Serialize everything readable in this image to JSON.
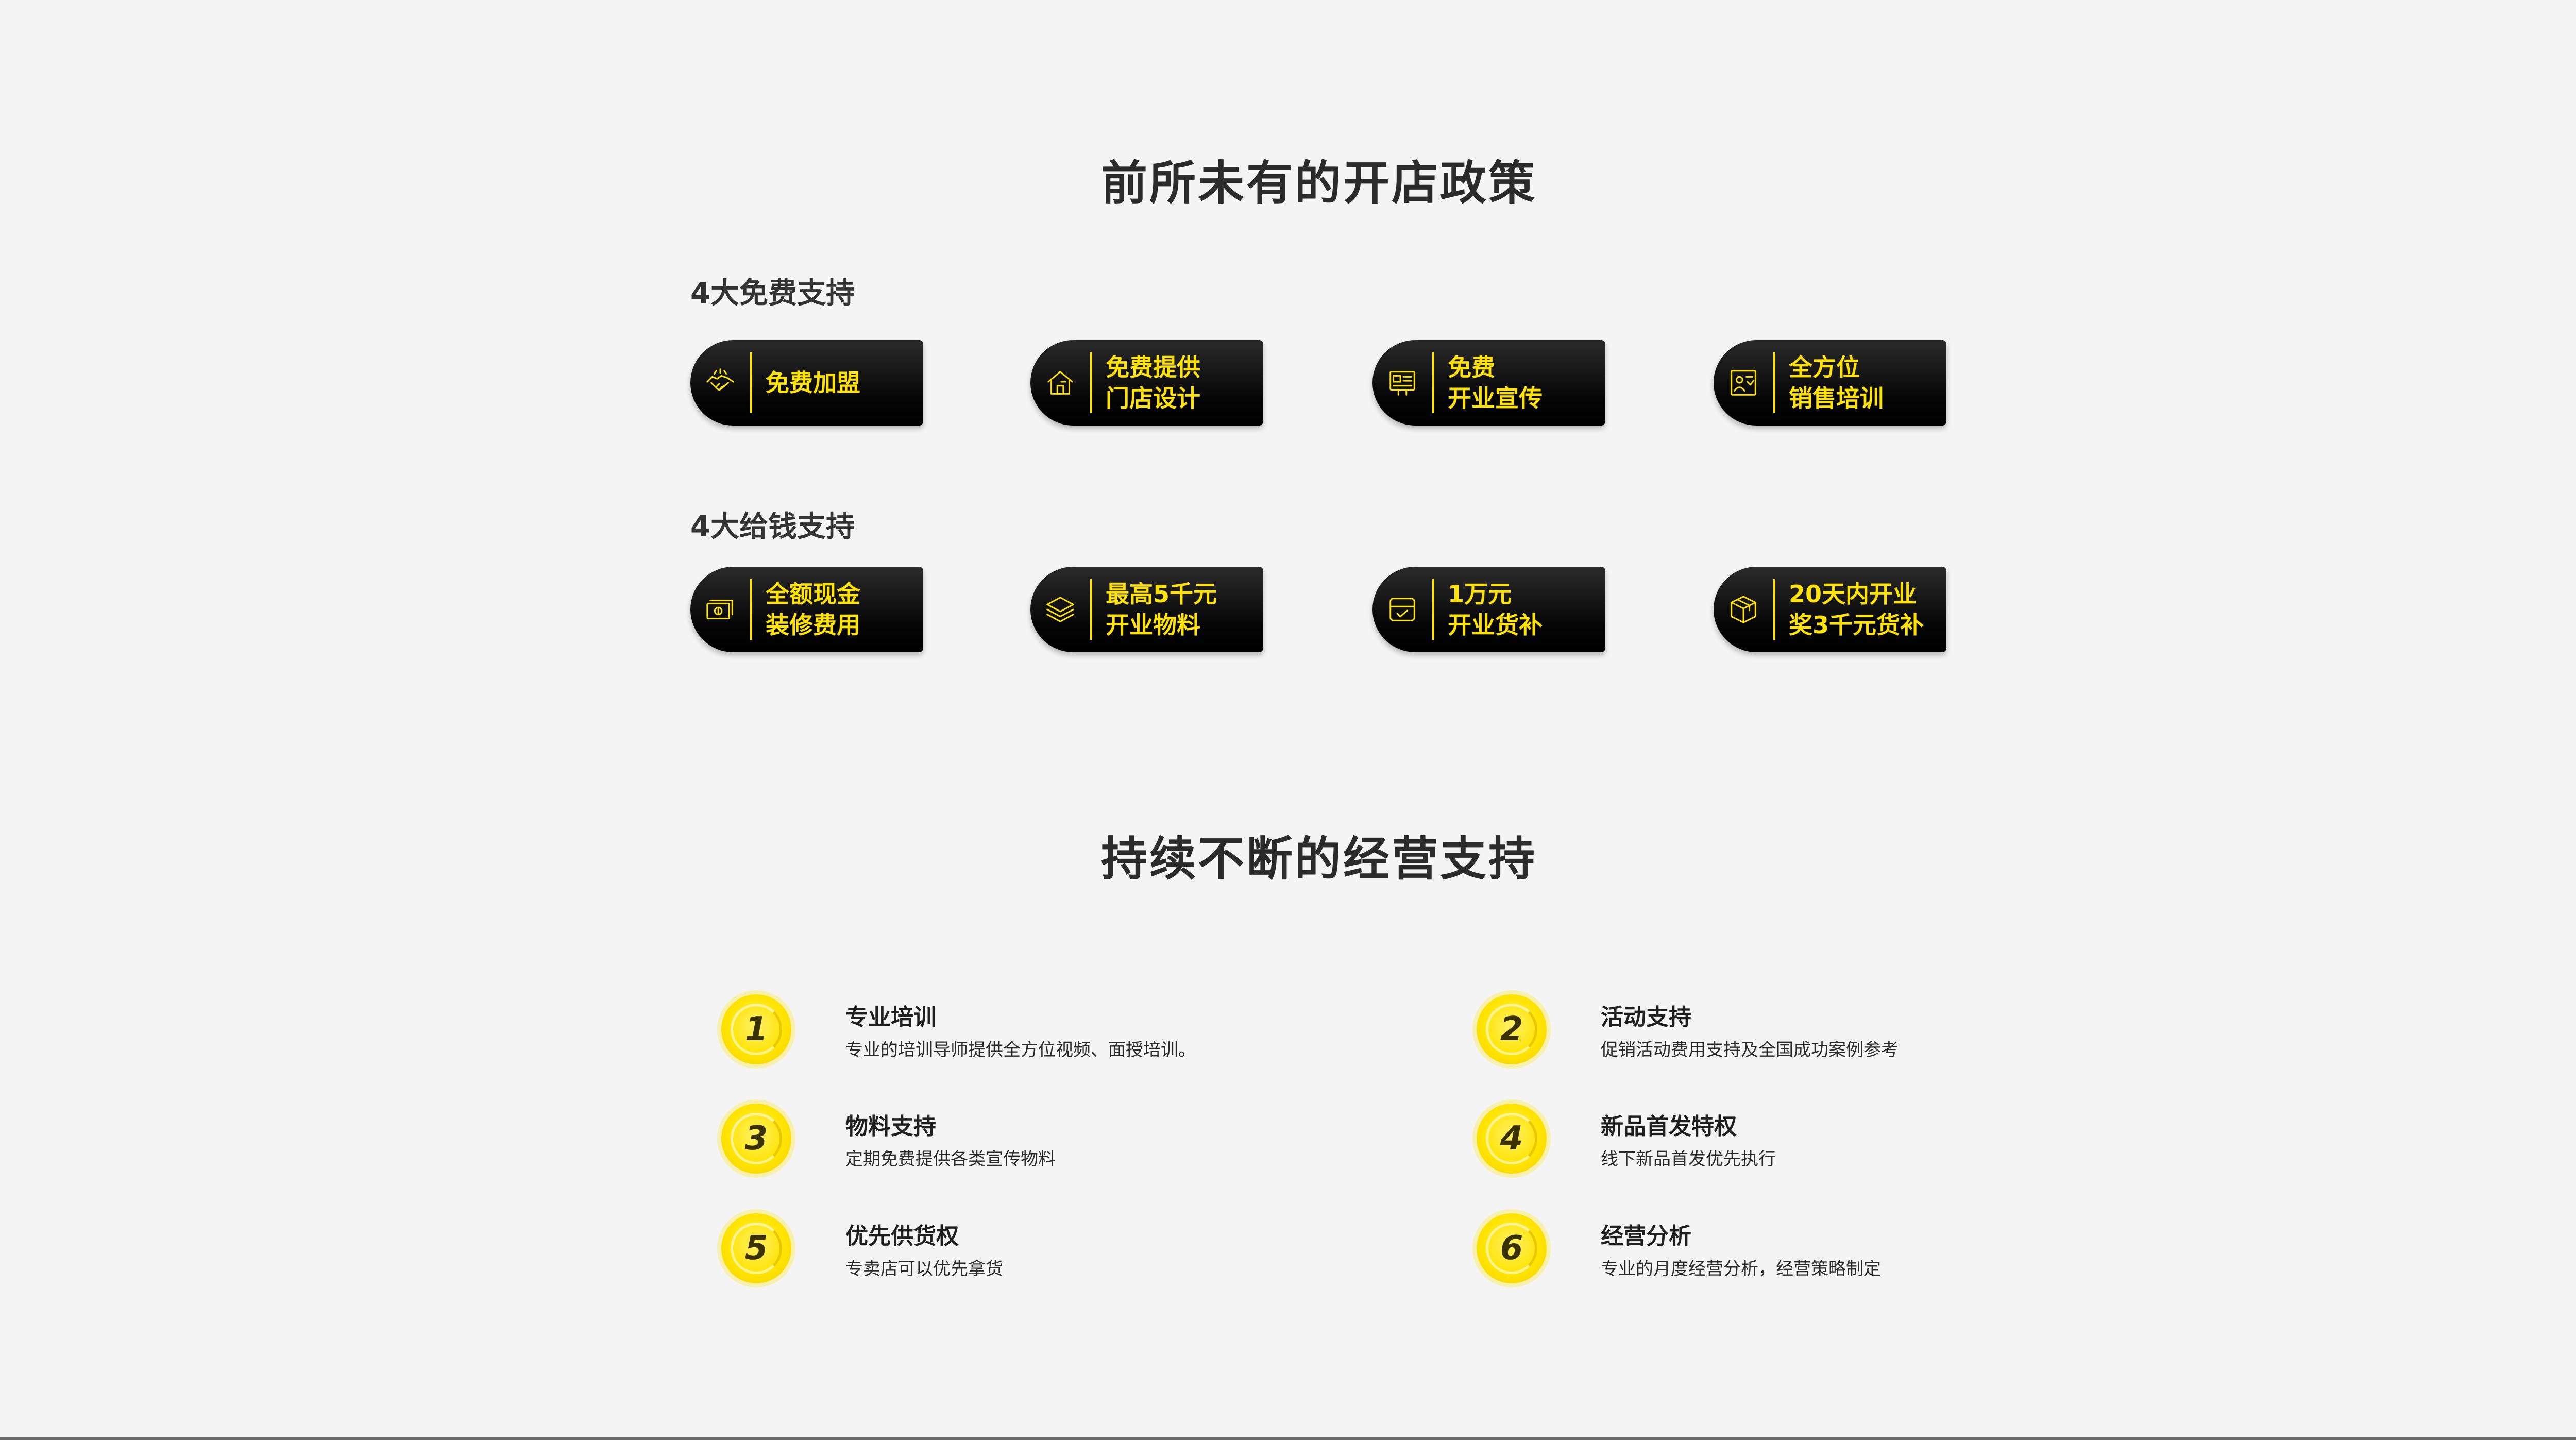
{
  "policy": {
    "title": "前所未有的开店政策",
    "free_support": {
      "label": "4大免费支持",
      "cards": [
        {
          "icon": "handshake-icon",
          "lines": [
            "免费加盟"
          ]
        },
        {
          "icon": "storefront-icon",
          "lines": [
            "免费提供",
            "门店设计"
          ]
        },
        {
          "icon": "billboard-icon",
          "lines": [
            "免费",
            "开业宣传"
          ]
        },
        {
          "icon": "trainer-board-icon",
          "lines": [
            "全方位",
            "销售培训"
          ]
        }
      ]
    },
    "money_support": {
      "label": "4大给钱支持",
      "cards": [
        {
          "icon": "cash-icon",
          "lines": [
            "全额现金",
            "装修费用"
          ]
        },
        {
          "icon": "layers-icon",
          "lines": [
            "最高5千元",
            "开业物料"
          ]
        },
        {
          "icon": "inbox-check-icon",
          "lines": [
            "1万元",
            "开业货补"
          ]
        },
        {
          "icon": "package-icon",
          "lines": [
            "20天内开业",
            "奖3千元货补"
          ]
        }
      ]
    }
  },
  "operation": {
    "title": "持续不断的经营支持",
    "items": [
      {
        "num": "1",
        "title": "专业培训",
        "desc": "专业的培训导师提供全方位视频、面授培训。"
      },
      {
        "num": "2",
        "title": "活动支持",
        "desc": "促销活动费用支持及全国成功案例参考"
      },
      {
        "num": "3",
        "title": "物料支持",
        "desc": "定期免费提供各类宣传物料"
      },
      {
        "num": "4",
        "title": "新品首发特权",
        "desc": "线下新品首发优先执行"
      },
      {
        "num": "5",
        "title": "优先供货权",
        "desc": "专卖店可以优先拿货"
      },
      {
        "num": "6",
        "title": "经营分析",
        "desc": "专业的月度经营分析，经营策略制定"
      }
    ]
  },
  "colors": {
    "accent": "#ffe20a",
    "card_bg": "#000000",
    "background": "#f4f4f4"
  }
}
